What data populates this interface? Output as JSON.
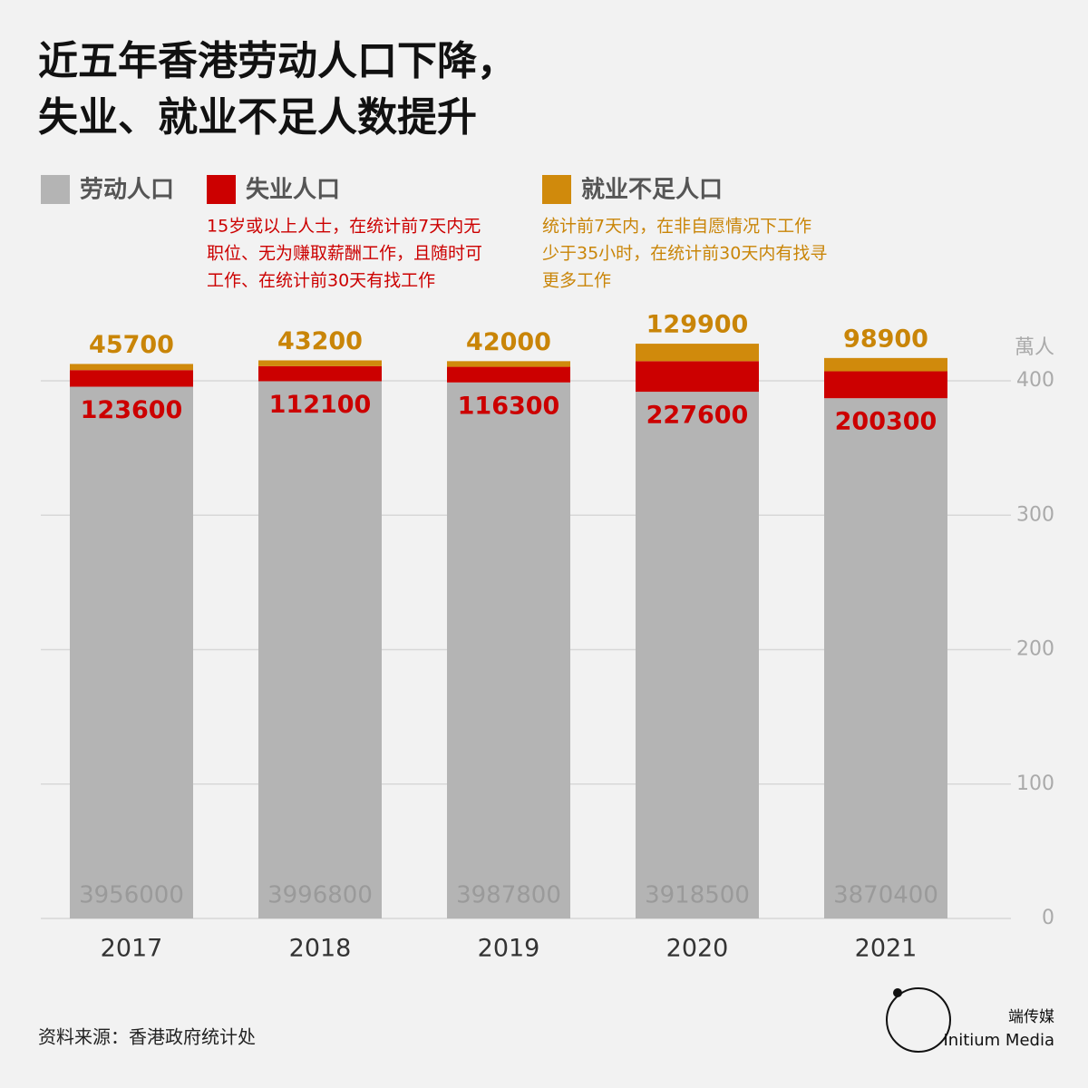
{
  "chart_data": {
    "type": "stacked_bar",
    "title": [
      "近五年香港劳动人口下降，",
      "失业、就业不足人数提升"
    ],
    "categories": [
      "2017",
      "2018",
      "2019",
      "2020",
      "2021"
    ],
    "series": [
      {
        "name": "劳动人口",
        "color": "#b4b4b4",
        "label_color": "#9a9a9a",
        "values": [
          395.6,
          399.68,
          398.78,
          391.85,
          387.04
        ],
        "value_labels": [
          "3956000",
          "3996800",
          "3987800",
          "3918500",
          "3870400"
        ]
      },
      {
        "name": "失业人口",
        "color": "#cc0000",
        "label_color": "#cc0000",
        "note": [
          "15岁或以上人士，在统计前7天内无",
          "职位、无为赚取薪酬工作，且随时可",
          "工作、在统计前30天有找工作"
        ],
        "values": [
          12.36,
          11.21,
          11.63,
          22.76,
          20.03
        ],
        "value_labels": [
          "123600",
          "112100",
          "116300",
          "227600",
          "200300"
        ]
      },
      {
        "name": "就业不足人口",
        "color": "#d08a0c",
        "label_color": "#c98508",
        "note": [
          "统计前7天内，在非自愿情况下工作",
          "少于35小时，在统计前30天内有找寻",
          "更多工作"
        ],
        "values": [
          4.57,
          4.32,
          4.2,
          12.99,
          9.89
        ],
        "value_labels": [
          "45700",
          "43200",
          "42000",
          "129900",
          "98900"
        ]
      }
    ],
    "y_unit": "萬人",
    "ylim": [
      0,
      430
    ],
    "yticks": [
      0,
      100,
      200,
      300,
      400
    ],
    "grid": true,
    "source": "资料来源：香港政府统计处",
    "brand": [
      "端传媒",
      "Initium Media"
    ]
  }
}
